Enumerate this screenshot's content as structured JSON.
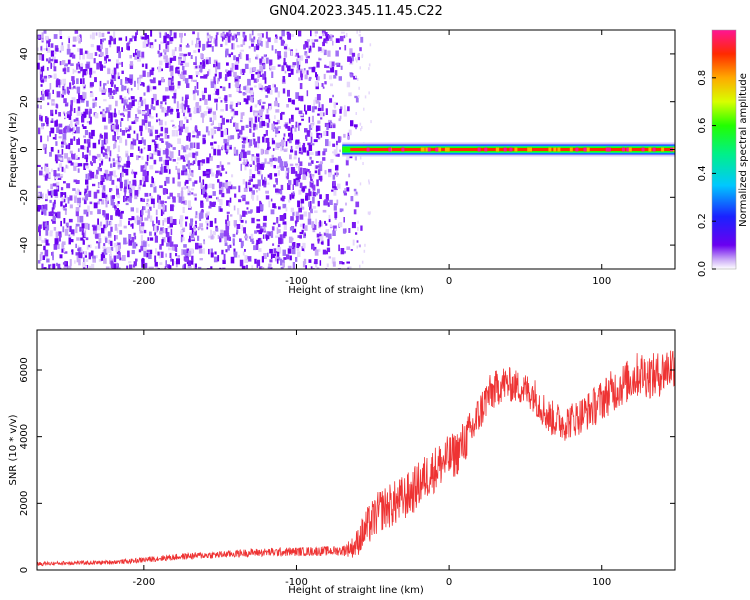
{
  "figure_title": "GN04.2023.345.11.45.C22",
  "colors": {
    "snr_line": "#ee3333",
    "spec_background": "#ffffff",
    "spec_noise_dense": "#6a00f0",
    "spec_noise_light": "#c9a8f6"
  },
  "chart_data": [
    {
      "type": "heatmap",
      "title": "",
      "xlabel": "Height of straight line (km)",
      "ylabel": "Frequency (Hz)",
      "xlim": [
        -270,
        148
      ],
      "ylim": [
        -50,
        50
      ],
      "xticks": [
        -200,
        -100,
        0,
        100
      ],
      "yticks": [
        -40,
        -20,
        0,
        20,
        40
      ],
      "grid": false,
      "regions": [
        {
          "kind": "broadband-noise",
          "x_range": [
            -270,
            -62
          ],
          "y_range": [
            -50,
            50
          ],
          "amplitude_range": [
            0.05,
            0.3
          ]
        },
        {
          "kind": "tonal-line",
          "x_range": [
            -70,
            148
          ],
          "frequency": 0,
          "amplitude_range": [
            0.8,
            1.0
          ]
        }
      ],
      "colorbar": {
        "label": "Normalized spectral amplitude",
        "range": [
          0,
          1
        ],
        "ticks": [
          "0.0",
          "0.2",
          "0.4",
          "0.6",
          "0.8"
        ],
        "tick_values": [
          0.0,
          0.2,
          0.4,
          0.6,
          0.8
        ]
      }
    },
    {
      "type": "line",
      "title": "",
      "xlabel": "Height of straight line (km)",
      "ylabel": "SNR (10 * v/v)",
      "xlim": [
        -270,
        148
      ],
      "ylim": [
        0,
        7200
      ],
      "xticks": [
        -200,
        -100,
        0,
        100
      ],
      "yticks": [
        0,
        2000,
        4000,
        6000
      ],
      "grid": false,
      "series": [
        {
          "x": [
            -270,
            -250,
            -230,
            -210,
            -190,
            -170,
            -150,
            -130,
            -110,
            -90,
            -70,
            -62,
            -55,
            -45,
            -35,
            -25,
            -15,
            -5,
            5,
            15,
            25,
            35,
            45,
            55,
            65,
            75,
            85,
            95,
            105,
            115,
            125,
            135,
            148
          ],
          "y": [
            180,
            210,
            220,
            260,
            350,
            420,
            460,
            520,
            540,
            560,
            580,
            700,
            1200,
            1800,
            2000,
            2300,
            2800,
            3200,
            3500,
            4200,
            5200,
            5600,
            5500,
            5300,
            4600,
            4400,
            4600,
            4900,
            5300,
            5600,
            5900,
            5800,
            6200
          ],
          "noise_amplitude": [
            60,
            60,
            60,
            70,
            90,
            100,
            110,
            120,
            130,
            140,
            150,
            350,
            600,
            650,
            700,
            700,
            700,
            700,
            700,
            650,
            600,
            550,
            500,
            550,
            550,
            550,
            550,
            600,
            650,
            650,
            700,
            700,
            700
          ]
        }
      ]
    }
  ]
}
